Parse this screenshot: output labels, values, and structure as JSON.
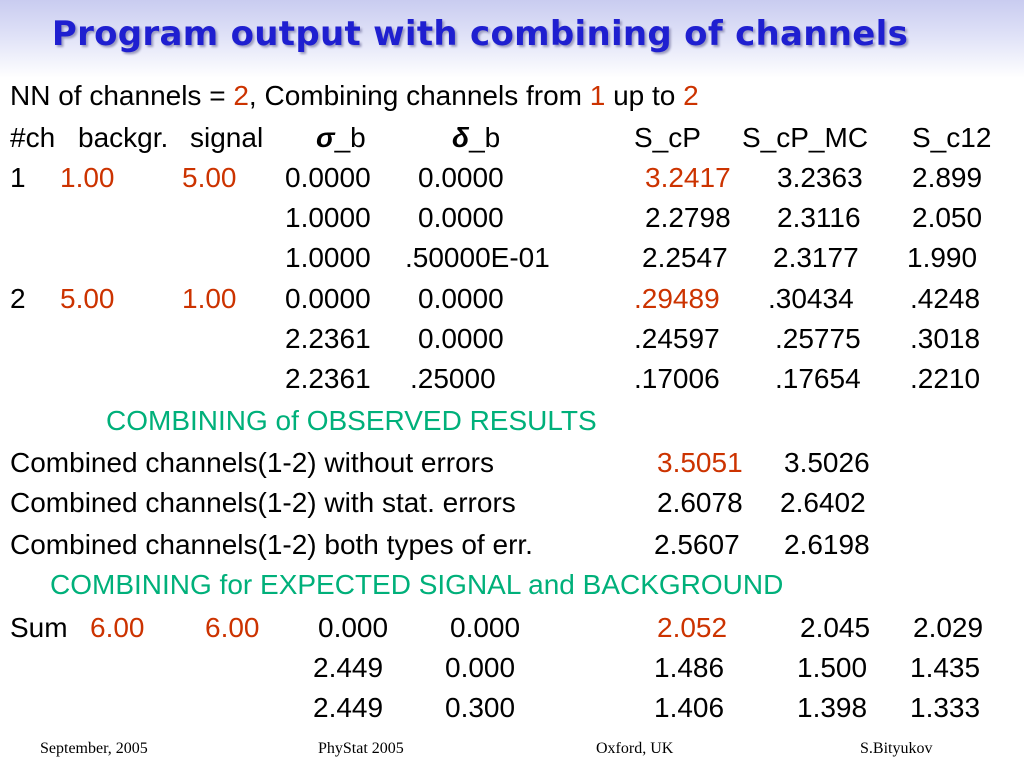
{
  "title": "Program output with combining of channels",
  "header": {
    "nn_prefix": "NN of channels = ",
    "nn_value": "2",
    "nn_mid": ", Combining channels from ",
    "from_value": "1",
    "nn_upto": " up to ",
    "to_value": "2"
  },
  "columns": {
    "ch": "#ch",
    "backgr": "backgr.",
    "signal": "signal",
    "sigma_symbol": "σ",
    "sigma_suffix": "_b",
    "delta_symbol": "δ",
    "delta_suffix": "_b",
    "scp": "S_cP",
    "scp_mc": "S_cP_MC",
    "sc12": "S_c12"
  },
  "channels": [
    {
      "ch": "1",
      "backgr": "1.00",
      "signal": "5.00",
      "rows": [
        {
          "sigma": "0.0000",
          "delta": "0.0000",
          "scp": "3.2417",
          "scp_mc": "3.2363",
          "sc12": "2.899"
        },
        {
          "sigma": "1.0000",
          "delta": "0.0000",
          "scp": "2.2798",
          "scp_mc": "2.3116",
          "sc12": "2.050"
        },
        {
          "sigma": "1.0000",
          "delta": ".50000E-01",
          "scp": "2.2547",
          "scp_mc": "2.3177",
          "sc12": "1.990"
        }
      ]
    },
    {
      "ch": "2",
      "backgr": "5.00",
      "signal": "1.00",
      "rows": [
        {
          "sigma": "0.0000",
          "delta": "0.0000",
          "scp": ".29489",
          "scp_mc": ".30434",
          "sc12": ".4248"
        },
        {
          "sigma": "2.2361",
          "delta": "0.0000",
          "scp": ".24597",
          "scp_mc": ".25775",
          "sc12": ".3018"
        },
        {
          "sigma": "2.2361",
          "delta": ".25000",
          "scp": ".17006",
          "scp_mc": ".17654",
          "sc12": ".2210"
        }
      ]
    }
  ],
  "observed": {
    "heading": "COMBINING of OBSERVED RESULTS",
    "lines": [
      {
        "label": "Combined channels(1-2) without errors",
        "v1": "3.5051",
        "v2": "3.5026"
      },
      {
        "label": "Combined channels(1-2) with stat. errors",
        "v1": "2.6078",
        "v2": "2.6402"
      },
      {
        "label": "Combined channels(1-2) both types of err.",
        "v1": "2.5607",
        "v2": "2.6198"
      }
    ]
  },
  "expected": {
    "heading": "COMBINING for EXPECTED SIGNAL and BACKGROUND",
    "label": "Sum",
    "backgr": "6.00",
    "signal": "6.00",
    "rows": [
      {
        "sigma": "0.000",
        "delta": "0.000",
        "scp": "2.052",
        "scp_mc": "2.045",
        "sc12": "2.029"
      },
      {
        "sigma": "2.449",
        "delta": "0.000",
        "scp": "1.486",
        "scp_mc": "1.500",
        "sc12": "1.435"
      },
      {
        "sigma": "2.449",
        "delta": "0.300",
        "scp": "1.406",
        "scp_mc": "1.398",
        "sc12": "1.333"
      }
    ]
  },
  "footer": {
    "date": "September, 2005",
    "conference": "PhyStat 2005",
    "location": "Oxford, UK",
    "author": "S.Bityukov"
  },
  "colors": {
    "title": "#1f1fd0",
    "highlight": "#cc3300",
    "heading": "#00b07a"
  }
}
